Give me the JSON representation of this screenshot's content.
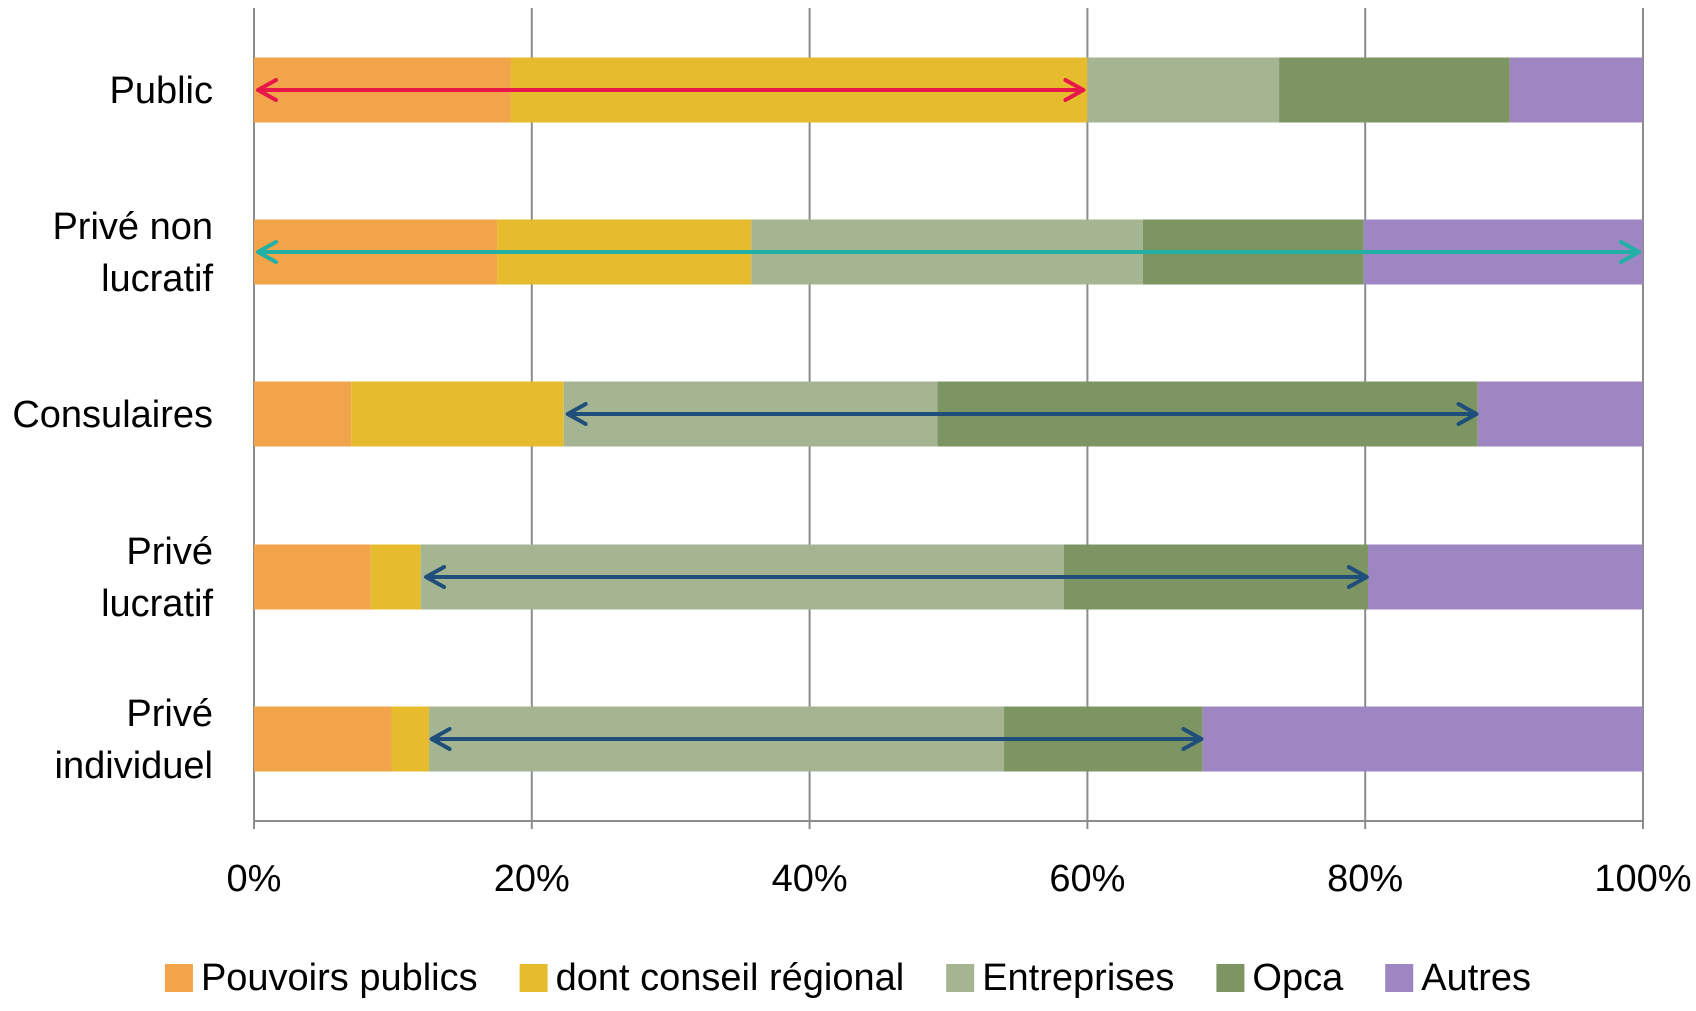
{
  "chart_data": {
    "type": "bar",
    "orientation": "horizontal",
    "stacked": "percent",
    "title": "",
    "xlabel": "",
    "ylabel": "",
    "xlim": [
      0,
      100
    ],
    "categories": [
      [
        "Public"
      ],
      [
        "Privé non",
        "lucratif"
      ],
      [
        "Consulaires"
      ],
      [
        "Privé",
        "lucratif"
      ],
      [
        "Privé",
        "individuel"
      ]
    ],
    "x_ticks": [
      "0%",
      "20%",
      "40%",
      "60%",
      "80%",
      "100%"
    ],
    "grid": true,
    "legend_position": "bottom",
    "series": [
      {
        "name": "Pouvoirs publics",
        "color": "#F2A44A",
        "values": [
          18.5,
          17.5,
          7,
          8.4,
          9.9
        ]
      },
      {
        "name": "dont conseil régional",
        "color": "#E6BC2E",
        "values": [
          41.5,
          18.3,
          15.3,
          3.6,
          2.7
        ]
      },
      {
        "name": "Entreprises",
        "color": "#A5B592",
        "values": [
          13.8,
          28.2,
          26.9,
          46.3,
          41.4
        ]
      },
      {
        "name": "Opca",
        "color": "#7D9463",
        "values": [
          16.6,
          15.9,
          38.9,
          21.9,
          14.3
        ]
      },
      {
        "name": "Autres",
        "color": "#9D86C2",
        "values": [
          9.6,
          20.1,
          11.9,
          19.8,
          31.7
        ]
      }
    ],
    "annotations": [
      {
        "type": "double-arrow",
        "category": 0,
        "from": 0,
        "to": 60,
        "color": "#E8174A"
      },
      {
        "type": "double-arrow",
        "category": 1,
        "from": 0,
        "to": 100,
        "color": "#22B0A6"
      },
      {
        "type": "double-arrow",
        "category": 2,
        "from": 22.3,
        "to": 88.3,
        "color": "#1F4E7A"
      },
      {
        "type": "double-arrow",
        "category": 3,
        "from": 12.1,
        "to": 80.4,
        "color": "#1F4E7A"
      },
      {
        "type": "double-arrow",
        "category": 4,
        "from": 12.5,
        "to": 68.5,
        "color": "#1F4E7A"
      }
    ]
  }
}
